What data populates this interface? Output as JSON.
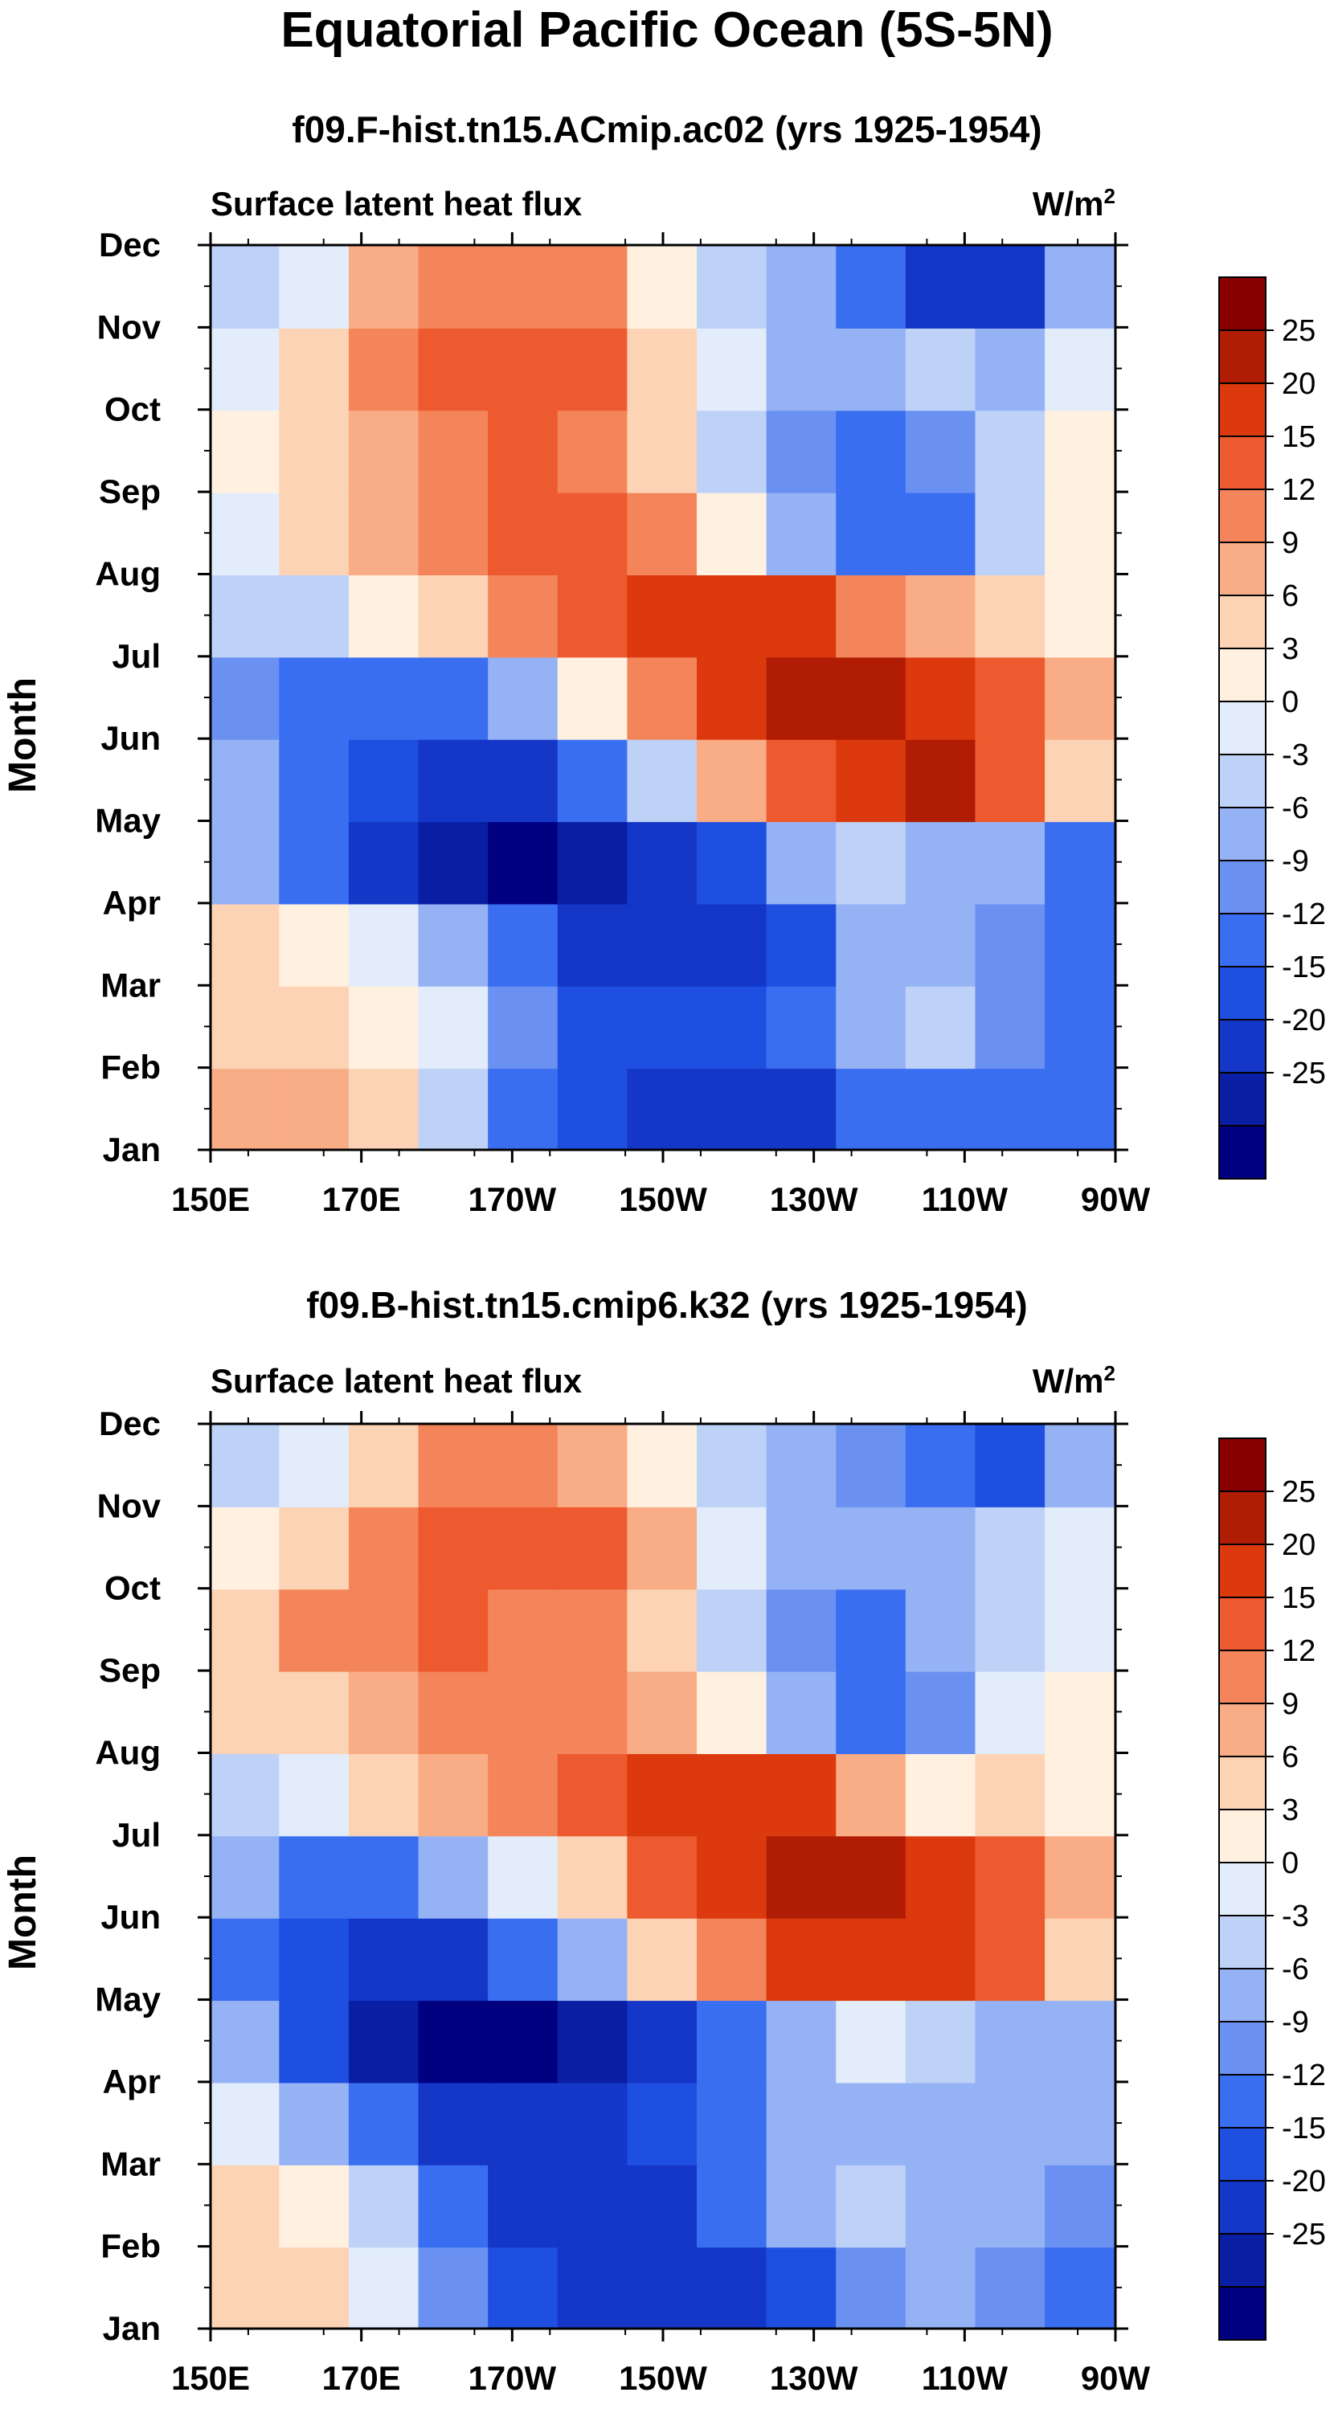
{
  "figure": {
    "title": "Equatorial Pacific Ocean (5S-5N)"
  },
  "colors": {
    "levels": [
      "#000080",
      "#0a1ea4",
      "#1437c8",
      "#1f4fe0",
      "#3a6ef0",
      "#6a91f2",
      "#95b2f5",
      "#bed2f8",
      "#e2ecfb",
      "#fff0e0",
      "#fcd3b5",
      "#f9ad86",
      "#f4855a",
      "#ed5a2f",
      "#dc3a0e",
      "#b11c05",
      "#8a0000"
    ]
  },
  "chart_data": [
    {
      "type": "heatmap",
      "title": "f09.F-hist.tn15.ACmip.ac02 (yrs 1925-1954)",
      "left_label": "Surface latent heat flux",
      "units": "W/m",
      "units_sup": "2",
      "ylabel": "Month",
      "x_ticks": [
        "150E",
        "170E",
        "170W",
        "150W",
        "130W",
        "110W",
        "90W"
      ],
      "x_range": [
        150,
        270
      ],
      "y_ticks": [
        "Jan",
        "Feb",
        "Mar",
        "Apr",
        "May",
        "Jun",
        "Jul",
        "Aug",
        "Sep",
        "Oct",
        "Nov",
        "Dec"
      ],
      "levels": [
        "25",
        "20",
        "15",
        "12",
        "9",
        "6",
        "3",
        "0",
        "-3",
        "-6",
        "-9",
        "-12",
        "-15",
        "-20",
        "-25"
      ],
      "x": [
        150,
        160,
        170,
        180,
        190,
        200,
        210,
        220,
        230,
        240,
        250,
        260,
        270
      ],
      "values": [
        [
          10,
          10,
          8,
          -5,
          -10,
          -14,
          -18,
          -18,
          -16,
          -14,
          -14,
          -14,
          -14
        ],
        [
          10,
          9,
          6,
          -2,
          -10,
          -14,
          -16,
          -18,
          -16,
          -12,
          -10,
          -12,
          -12
        ],
        [
          8,
          7,
          4,
          0,
          -8,
          -14,
          -14,
          -15,
          -12,
          -4,
          -2,
          -8,
          -11
        ],
        [
          6,
          4,
          2,
          -4,
          -12,
          -16,
          -18,
          -16,
          -14,
          -6,
          -4,
          -8,
          -10
        ],
        [
          -4,
          -10,
          -18,
          -24,
          -26,
          -24,
          -20,
          -14,
          -6,
          -2,
          -4,
          -6,
          -10
        ],
        [
          -6,
          -12,
          -14,
          -16,
          -16,
          -12,
          -2,
          10,
          18,
          24,
          26,
          18,
          8
        ],
        [
          -8,
          -12,
          -12,
          -10,
          -4,
          4,
          12,
          22,
          27,
          27,
          24,
          18,
          10
        ],
        [
          -2,
          -2,
          4,
          8,
          14,
          18,
          22,
          24,
          20,
          14,
          10,
          8,
          4
        ],
        [
          2,
          6,
          10,
          14,
          16,
          16,
          12,
          4,
          -6,
          -12,
          -10,
          -2,
          4
        ],
        [
          3,
          6,
          11,
          14,
          16,
          13,
          8,
          -2,
          -8,
          -12,
          -8,
          -2,
          4
        ],
        [
          2,
          6,
          14,
          18,
          19,
          18,
          8,
          2,
          -4,
          -6,
          -2,
          -4,
          2
        ],
        [
          -2,
          2,
          10,
          13,
          14,
          12,
          4,
          -2,
          -6,
          -12,
          -16,
          -20,
          -5
        ]
      ]
    },
    {
      "type": "heatmap",
      "title": "f09.B-hist.tn15.cmip6.k32 (yrs 1925-1954)",
      "left_label": "Surface latent heat flux",
      "units": "W/m",
      "units_sup": "2",
      "ylabel": "Month",
      "x_ticks": [
        "150E",
        "170E",
        "170W",
        "150W",
        "130W",
        "110W",
        "90W"
      ],
      "x_range": [
        150,
        270
      ],
      "y_ticks": [
        "Jan",
        "Feb",
        "Mar",
        "Apr",
        "May",
        "Jun",
        "Jul",
        "Aug",
        "Sep",
        "Oct",
        "Nov",
        "Dec"
      ],
      "levels": [
        "25",
        "20",
        "15",
        "12",
        "9",
        "6",
        "3",
        "0",
        "-3",
        "-6",
        "-9",
        "-12",
        "-15",
        "-20",
        "-25"
      ],
      "x": [
        150,
        160,
        170,
        180,
        190,
        200,
        210,
        220,
        230,
        240,
        250,
        260,
        270
      ],
      "values": [
        [
          6,
          4,
          -2,
          -10,
          -14,
          -16,
          -18,
          -18,
          -16,
          -14,
          -14,
          -14,
          -12
        ],
        [
          8,
          6,
          0,
          -8,
          -14,
          -16,
          -18,
          -18,
          -14,
          -8,
          -6,
          -8,
          -10
        ],
        [
          6,
          4,
          -2,
          -10,
          -16,
          -18,
          -16,
          -12,
          -4,
          -2,
          -4,
          -6,
          -8
        ],
        [
          2,
          -4,
          -12,
          -18,
          -20,
          -18,
          -14,
          -10,
          -6,
          -4,
          -6,
          -6,
          -6
        ],
        [
          -6,
          -14,
          -22,
          -26,
          -27,
          -24,
          -18,
          -12,
          -4,
          0,
          -2,
          -4,
          -6
        ],
        [
          -10,
          -14,
          -16,
          -16,
          -12,
          -6,
          6,
          14,
          20,
          24,
          22,
          16,
          8
        ],
        [
          -4,
          -10,
          -10,
          -6,
          0,
          8,
          16,
          24,
          27,
          27,
          22,
          16,
          10
        ],
        [
          -2,
          2,
          6,
          10,
          14,
          18,
          22,
          24,
          20,
          10,
          4,
          6,
          4
        ],
        [
          6,
          8,
          10,
          12,
          14,
          14,
          10,
          4,
          -6,
          -12,
          -8,
          0,
          4
        ],
        [
          8,
          12,
          14,
          16,
          14,
          12,
          6,
          -2,
          -8,
          -12,
          -6,
          -2,
          2
        ],
        [
          4,
          8,
          12,
          16,
          18,
          16,
          10,
          2,
          -4,
          -6,
          -4,
          -2,
          2
        ],
        [
          -2,
          2,
          6,
          12,
          14,
          10,
          4,
          -2,
          -6,
          -8,
          -10,
          -14,
          -4
        ]
      ]
    }
  ]
}
